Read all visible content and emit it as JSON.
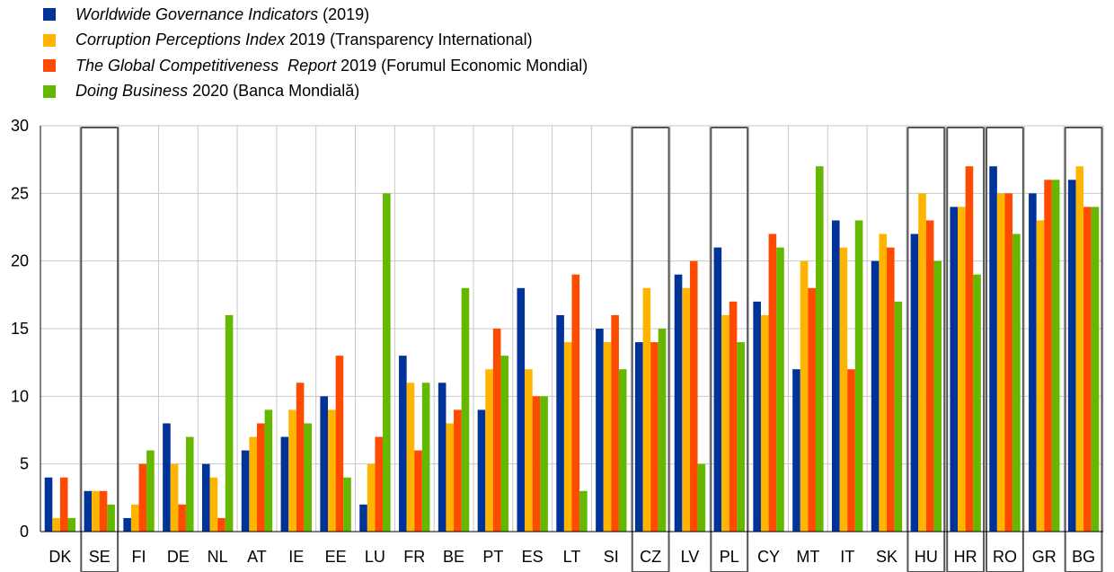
{
  "legend": [
    {
      "italic": "Worldwide Governance Indicators",
      "rest": " (2019)",
      "color": "#003399"
    },
    {
      "italic": "Corruption Perceptions Index",
      "rest": " 2019 (Transparency International)",
      "color": "#FFB400"
    },
    {
      "italic": "The Global Competitiveness  Report",
      "rest": " 2019 (Forumul Economic Mondial)",
      "color": "#FF4B00"
    },
    {
      "italic": "Doing Business",
      "rest": " 2020 (Banca Mondială)",
      "color": "#65B800"
    }
  ],
  "chart_data": {
    "type": "bar",
    "categories": [
      "DK",
      "SE",
      "FI",
      "DE",
      "NL",
      "AT",
      "IE",
      "EE",
      "LU",
      "FR",
      "BE",
      "PT",
      "ES",
      "LT",
      "SI",
      "CZ",
      "LV",
      "PL",
      "CY",
      "MT",
      "IT",
      "SK",
      "HU",
      "HR",
      "RO",
      "GR",
      "BG"
    ],
    "highlighted": [
      "SE",
      "CZ",
      "PL",
      "HU",
      "HR",
      "RO",
      "BG"
    ],
    "series": [
      {
        "values": [
          4,
          3,
          1,
          8,
          5,
          6,
          7,
          10,
          2,
          13,
          11,
          9,
          18,
          16,
          15,
          14,
          19,
          21,
          17,
          12,
          23,
          20,
          22,
          24,
          27,
          25,
          26
        ],
        "color": "#003399"
      },
      {
        "values": [
          1,
          3,
          2,
          5,
          4,
          7,
          9,
          9,
          5,
          11,
          8,
          12,
          12,
          14,
          14,
          18,
          18,
          16,
          16,
          20,
          21,
          22,
          25,
          24,
          25,
          23,
          27
        ],
        "color": "#FFB400"
      },
      {
        "values": [
          4,
          3,
          5,
          2,
          1,
          8,
          11,
          13,
          7,
          6,
          9,
          15,
          10,
          19,
          16,
          14,
          20,
          17,
          22,
          18,
          12,
          21,
          23,
          27,
          25,
          26,
          24
        ],
        "color": "#FF4B00"
      },
      {
        "values": [
          1,
          2,
          6,
          7,
          16,
          9,
          8,
          4,
          25,
          11,
          18,
          13,
          10,
          3,
          12,
          15,
          5,
          14,
          21,
          27,
          23,
          17,
          20,
          19,
          22,
          26,
          24
        ],
        "color": "#65B800"
      }
    ],
    "yticks": [
      0,
      5,
      10,
      15,
      20,
      25,
      30
    ],
    "ylim": [
      0,
      30
    ],
    "grid": true,
    "legend_position": "top-left"
  }
}
